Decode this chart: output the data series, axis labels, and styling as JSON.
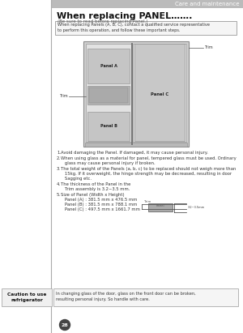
{
  "page_bg": "#ffffff",
  "header_bg": "#bbbbbb",
  "header_text": "Care and maintenance",
  "header_text_color": "#ffffff",
  "title": "When replacing PANEL…….",
  "subtitle": "(Be sure to read before replacing Panel.)",
  "notice_box_text": "When replacing Panels (A, B, C), contact a qualified service representative\nto perform this operation, and follow these important steps.",
  "numbered_items": [
    "Avoid damaging the Panel. If damaged, it may cause personal injury.",
    "When using glass as a material for panel, tempered glass must be used. Ordinary\n   glass may cause personal injury if broken.",
    "The total weight of the Panels (a, b, c) to be replaced should not weigh more than\n   15kg. If it overweight, the hinge strength may be decreased, resulting in door\n   Sagging etc.",
    "The thickness of the Panel in the\n   Trim assembly is 3.2~3.5 mm.",
    "Size of Panel (Width x Height)\n   Panel (A) : 381.5 mm x 476.5 mm\n   Panel (B) : 381.5 mm x 788.1 mm\n   Panel (C) : 497.5 mm x 1661.7 mm"
  ],
  "caution_label": "Caution to use\nrefrigerator",
  "caution_text": "In changing glass of the door, glass on the front door can be broken,\nresulting personal injury. So handle with care.",
  "page_number": "28"
}
